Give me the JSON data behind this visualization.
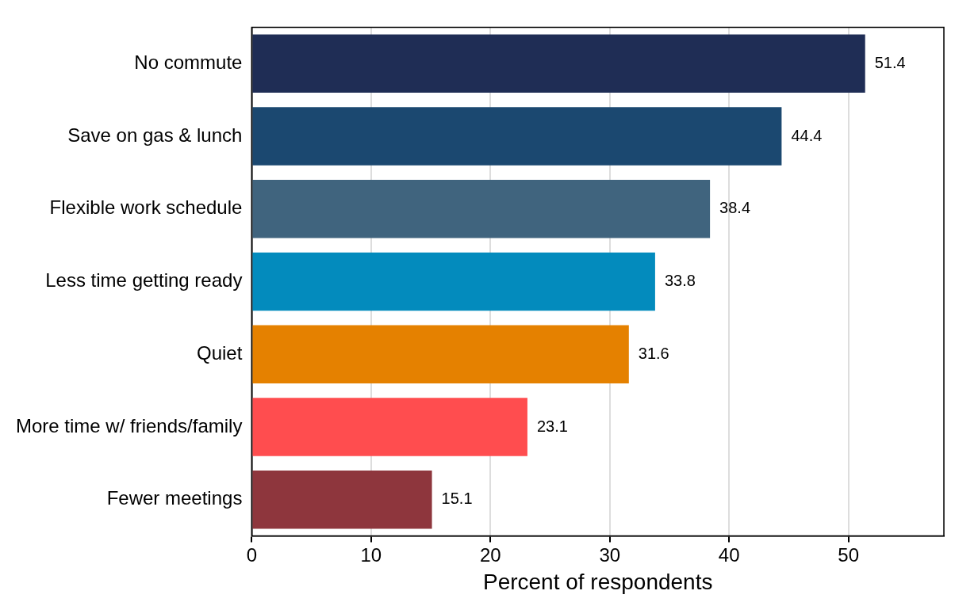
{
  "chart_data": {
    "type": "bar",
    "orientation": "horizontal",
    "xlabel": "Percent of respondents",
    "categories": [
      "No commute",
      "Save on gas & lunch",
      "Flexible work schedule",
      "Less time getting ready",
      "Quiet",
      "More time w/ friends/family",
      "Fewer meetings"
    ],
    "values": [
      51.4,
      44.4,
      38.4,
      33.8,
      31.6,
      23.1,
      15.1
    ],
    "colors": [
      "#1f2d55",
      "#1b4870",
      "#40647e",
      "#038bbd",
      "#e58100",
      "#ff4d4f",
      "#8e363d"
    ],
    "xlim": [
      0,
      58
    ],
    "xticks": [
      0,
      10,
      20,
      30,
      40,
      50
    ],
    "grid": "x",
    "data_labels": true,
    "legend": false
  }
}
